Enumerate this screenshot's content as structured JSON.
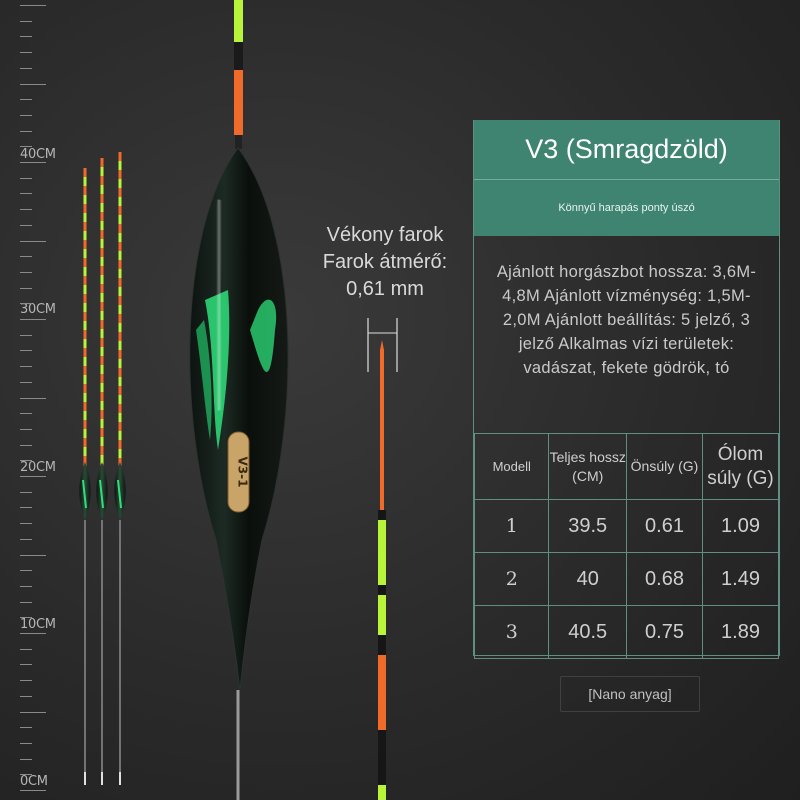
{
  "ruler": {
    "labels": [
      "40CM",
      "30CM",
      "20CM",
      "10CM",
      "0CM"
    ]
  },
  "annotation": {
    "line1": "Vékony farok",
    "line2": "Farok átmérő:",
    "line3": "0,61 mm"
  },
  "product_label": "V3-1",
  "panel": {
    "title": "V3 (Smragdzöld)",
    "subtitle": "Könnyű harapás ponty úszó",
    "description": "Ajánlott horgászbot hossza: 3,6M-4,8M Ajánlott vízménység: 1,5M-2,0M Ajánlott beállítás: 5 jelző, 3 jelző Alkalmas vízi területek: vadászat, fekete gödrök, tó",
    "table": {
      "headers": [
        "Modell",
        "Teljes hossz (CM)",
        "Önsúly (G)",
        "Ólom súly (G)"
      ],
      "rows": [
        [
          "1",
          "39.5",
          "0.61",
          "1.09"
        ],
        [
          "2",
          "40",
          "0.68",
          "1.49"
        ],
        [
          "3",
          "40.5",
          "0.75",
          "1.89"
        ]
      ]
    }
  },
  "footnote": "[Nano anyag]",
  "colors": {
    "accent_green": "#3f8470",
    "float_green": "#2ee07a",
    "float_orange": "#f06a2a",
    "float_lime": "#b8f53a"
  }
}
